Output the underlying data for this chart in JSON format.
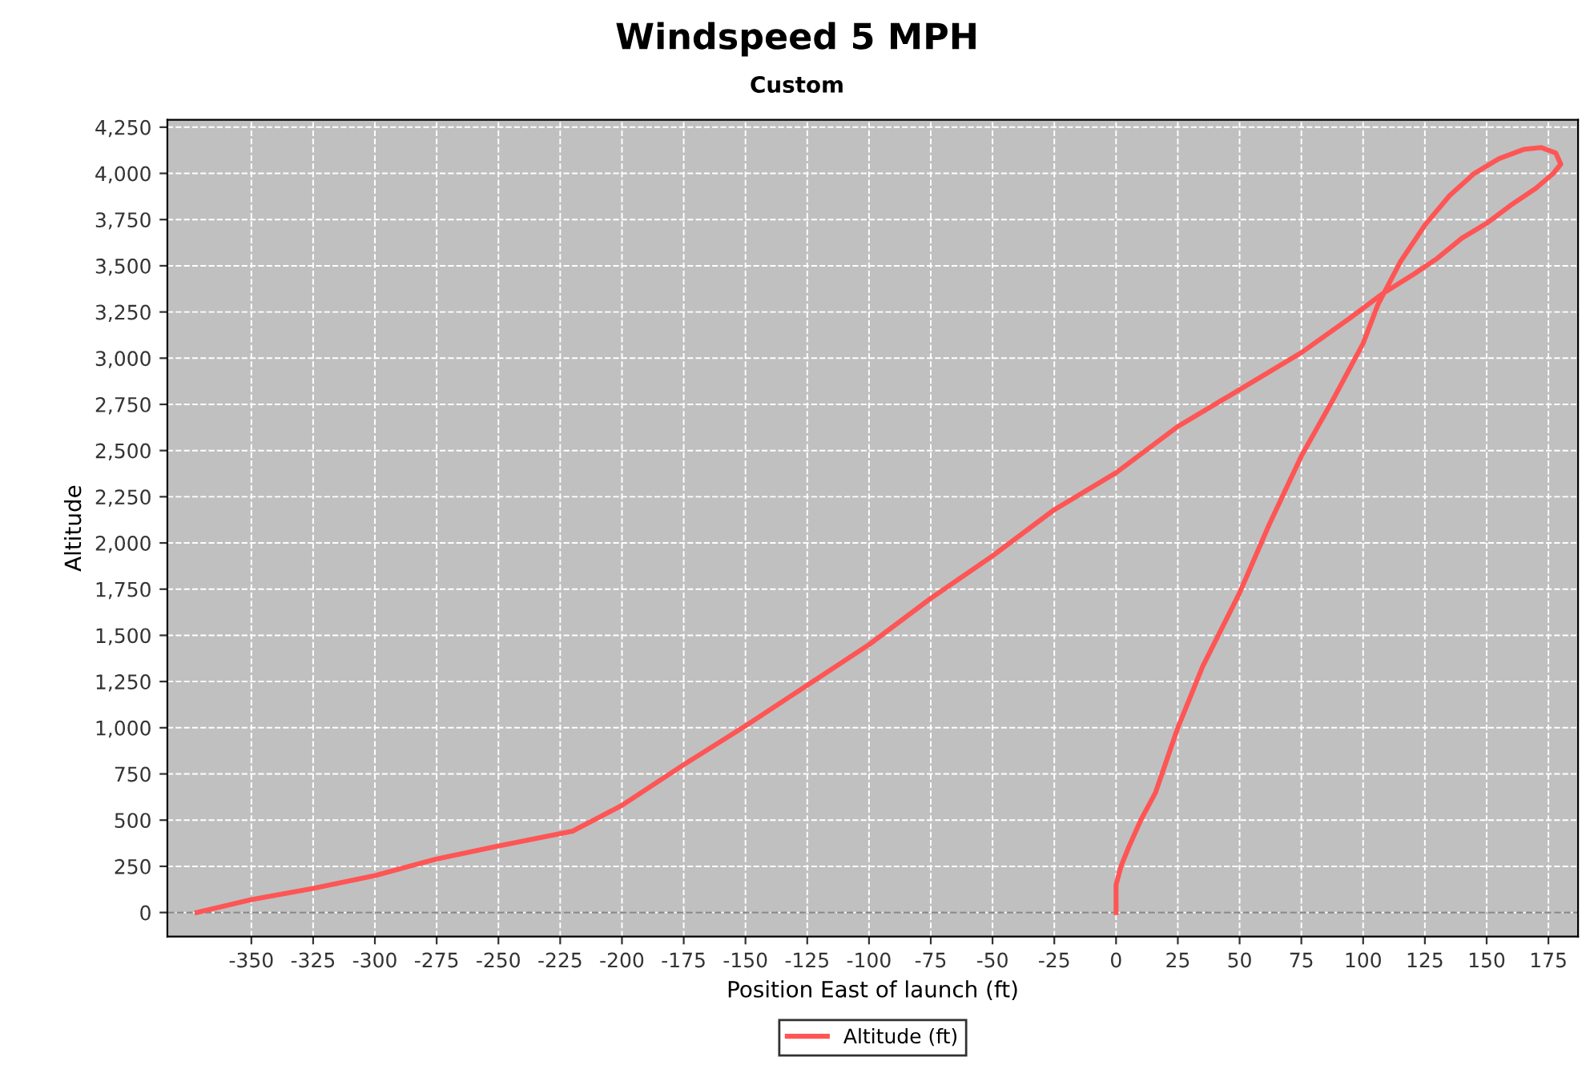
{
  "chart_data": {
    "type": "line",
    "title": "Windspeed 5 MPH",
    "subtitle": "Custom",
    "xlabel": "Position East of launch (ft)",
    "ylabel": "Altitude",
    "series": [
      {
        "name": "Altitude (ft)",
        "color": "#ff5555",
        "x": [
          0,
          0,
          2,
          5,
          10,
          16,
          25,
          35,
          50,
          62,
          75,
          88,
          100,
          106,
          115,
          125,
          135,
          145,
          155,
          165,
          172,
          178,
          180,
          177,
          170,
          160,
          150,
          140,
          130,
          120,
          108,
          95,
          75,
          60,
          45,
          25,
          0,
          -25,
          -50,
          -75,
          -100,
          -125,
          -150,
          -175,
          -200,
          -220,
          -250,
          -275,
          -300,
          -325,
          -350,
          -372
        ],
        "values": [
          0,
          150,
          250,
          350,
          500,
          650,
          1000,
          1330,
          1730,
          2100,
          2470,
          2780,
          3080,
          3290,
          3520,
          3720,
          3880,
          4000,
          4080,
          4130,
          4140,
          4110,
          4050,
          4000,
          3920,
          3830,
          3730,
          3650,
          3540,
          3450,
          3350,
          3220,
          3030,
          2910,
          2790,
          2630,
          2380,
          2180,
          1930,
          1700,
          1450,
          1230,
          1010,
          800,
          580,
          440,
          360,
          290,
          200,
          130,
          70,
          0
        ]
      }
    ],
    "xlim": [
      -384,
      187
    ],
    "ylim": [
      -130,
      4290
    ],
    "xticks": [
      -350,
      -325,
      -300,
      -275,
      -250,
      -225,
      -200,
      -175,
      -150,
      -125,
      -100,
      -75,
      -50,
      -25,
      0,
      25,
      50,
      75,
      100,
      125,
      150,
      175
    ],
    "yticks": [
      0,
      250,
      500,
      750,
      {
        "value": 1000,
        "label": "1,000"
      },
      {
        "value": 1250,
        "label": "1,250"
      },
      {
        "value": 1500,
        "label": "1,500"
      },
      {
        "value": 1750,
        "label": "1,750"
      },
      {
        "value": 2000,
        "label": "2,000"
      },
      {
        "value": 2250,
        "label": "2,250"
      },
      {
        "value": 2500,
        "label": "2,500"
      },
      {
        "value": 2750,
        "label": "2,750"
      },
      {
        "value": 3000,
        "label": "3,000"
      },
      {
        "value": 3250,
        "label": "3,250"
      },
      {
        "value": 3500,
        "label": "3,500"
      },
      {
        "value": 3750,
        "label": "3,750"
      },
      {
        "value": 4000,
        "label": "4,000"
      },
      {
        "value": 4250,
        "label": "4,250"
      }
    ],
    "ref_lines": [
      {
        "axis": "y",
        "value": 0,
        "color": "#888888",
        "line_style": "dashed"
      }
    ],
    "grid": true,
    "legend": "bottom",
    "marker": "none",
    "line_style": "solid"
  }
}
